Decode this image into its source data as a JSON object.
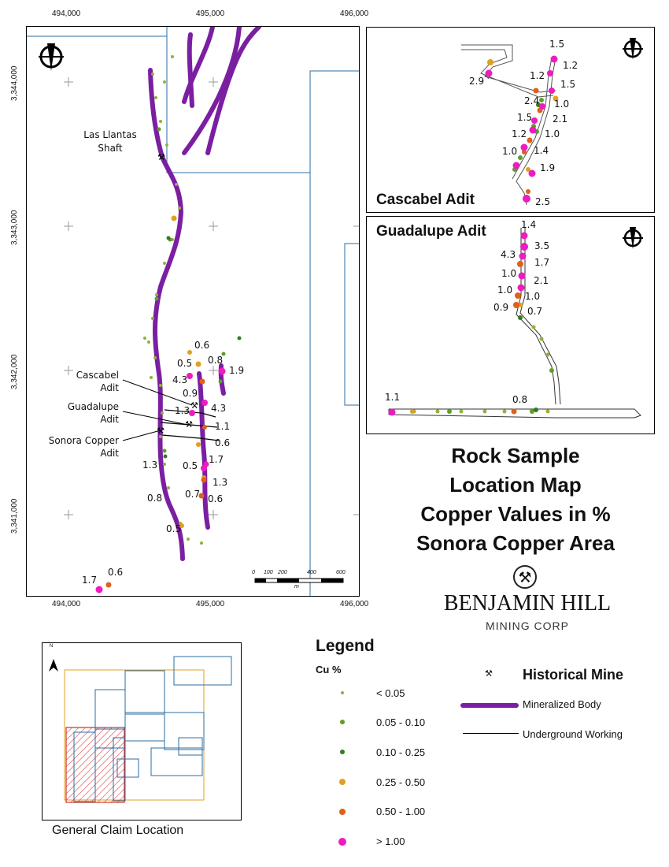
{
  "main_map": {
    "x_ticks": [
      "494,000",
      "495,000",
      "496,000"
    ],
    "y_ticks": [
      "3,344,000",
      "3,343,000",
      "3,342,000",
      "3,341,000"
    ],
    "features": {
      "las_llantas": "Las Llantas\nShaft",
      "cascabel": "Cascabel\nAdit",
      "guadalupe": "Guadalupe\nAdit",
      "sonora": "Sonora Copper\nAdit"
    },
    "sample_labels": [
      "0.6",
      "0.5",
      "0.8",
      "1.9",
      "4.3",
      "0.9",
      "1.3",
      "4.3",
      "1.1",
      "0.6",
      "1.3",
      "1.7",
      "0.5",
      "1.3",
      "0.7",
      "0.6",
      "0.8",
      "0.5",
      "1.7",
      "0.6"
    ],
    "scale_bar": {
      "ticks": [
        "0",
        "100",
        "200",
        "400",
        "600"
      ],
      "unit": "m"
    }
  },
  "cascabel_inset": {
    "title": "Cascabel Adit",
    "labels": [
      "1.5",
      "1.2",
      "2.9",
      "1.2",
      "1.5",
      "2.4",
      "1.0",
      "1.5",
      "2.1",
      "1.2",
      "1.0",
      "1.0",
      "1.4",
      "1.9",
      "2.5"
    ]
  },
  "guadalupe_inset": {
    "title": "Guadalupe Adit",
    "labels": [
      "1.4",
      "3.5",
      "4.3",
      "1.7",
      "1.0",
      "2.1",
      "1.0",
      "1.0",
      "0.9",
      "0.7",
      "1.1",
      "0.8"
    ]
  },
  "title_block": {
    "lines": [
      "Rock Sample",
      "Location Map",
      "Copper Values in %",
      "Sonora Copper Area"
    ],
    "company": "BENJAMIN HILL",
    "company_sub": "MINING CORP"
  },
  "locator": {
    "caption": "General Claim Location",
    "north": "N"
  },
  "legend": {
    "title": "Legend",
    "subtitle": "Cu %",
    "classes": [
      {
        "label": "< 0.05",
        "color": "#8db33a"
      },
      {
        "label": "0.05 - 0.10",
        "color": "#5e9e2a"
      },
      {
        "label": "0.10 - 0.25",
        "color": "#2f7d23"
      },
      {
        "label": "0.25 - 0.50",
        "color": "#e0a020"
      },
      {
        "label": "0.50 - 1.00",
        "color": "#e0601a"
      },
      {
        "label": "> 1.00",
        "color": "#ec1cc0"
      }
    ],
    "historical_mine": "Historical Mine",
    "mineralized_body": "Mineralized Body",
    "underground_working": "Underground Working"
  },
  "colors": {
    "mineralized": "#7b1fa2",
    "claim_line": "#2b6ca3",
    "orange_box": "#e0a020",
    "red_box": "#d32f2f"
  },
  "icons": [
    "north-arrow-icon",
    "historical-mine-icon",
    "pickaxe-logo-icon"
  ]
}
